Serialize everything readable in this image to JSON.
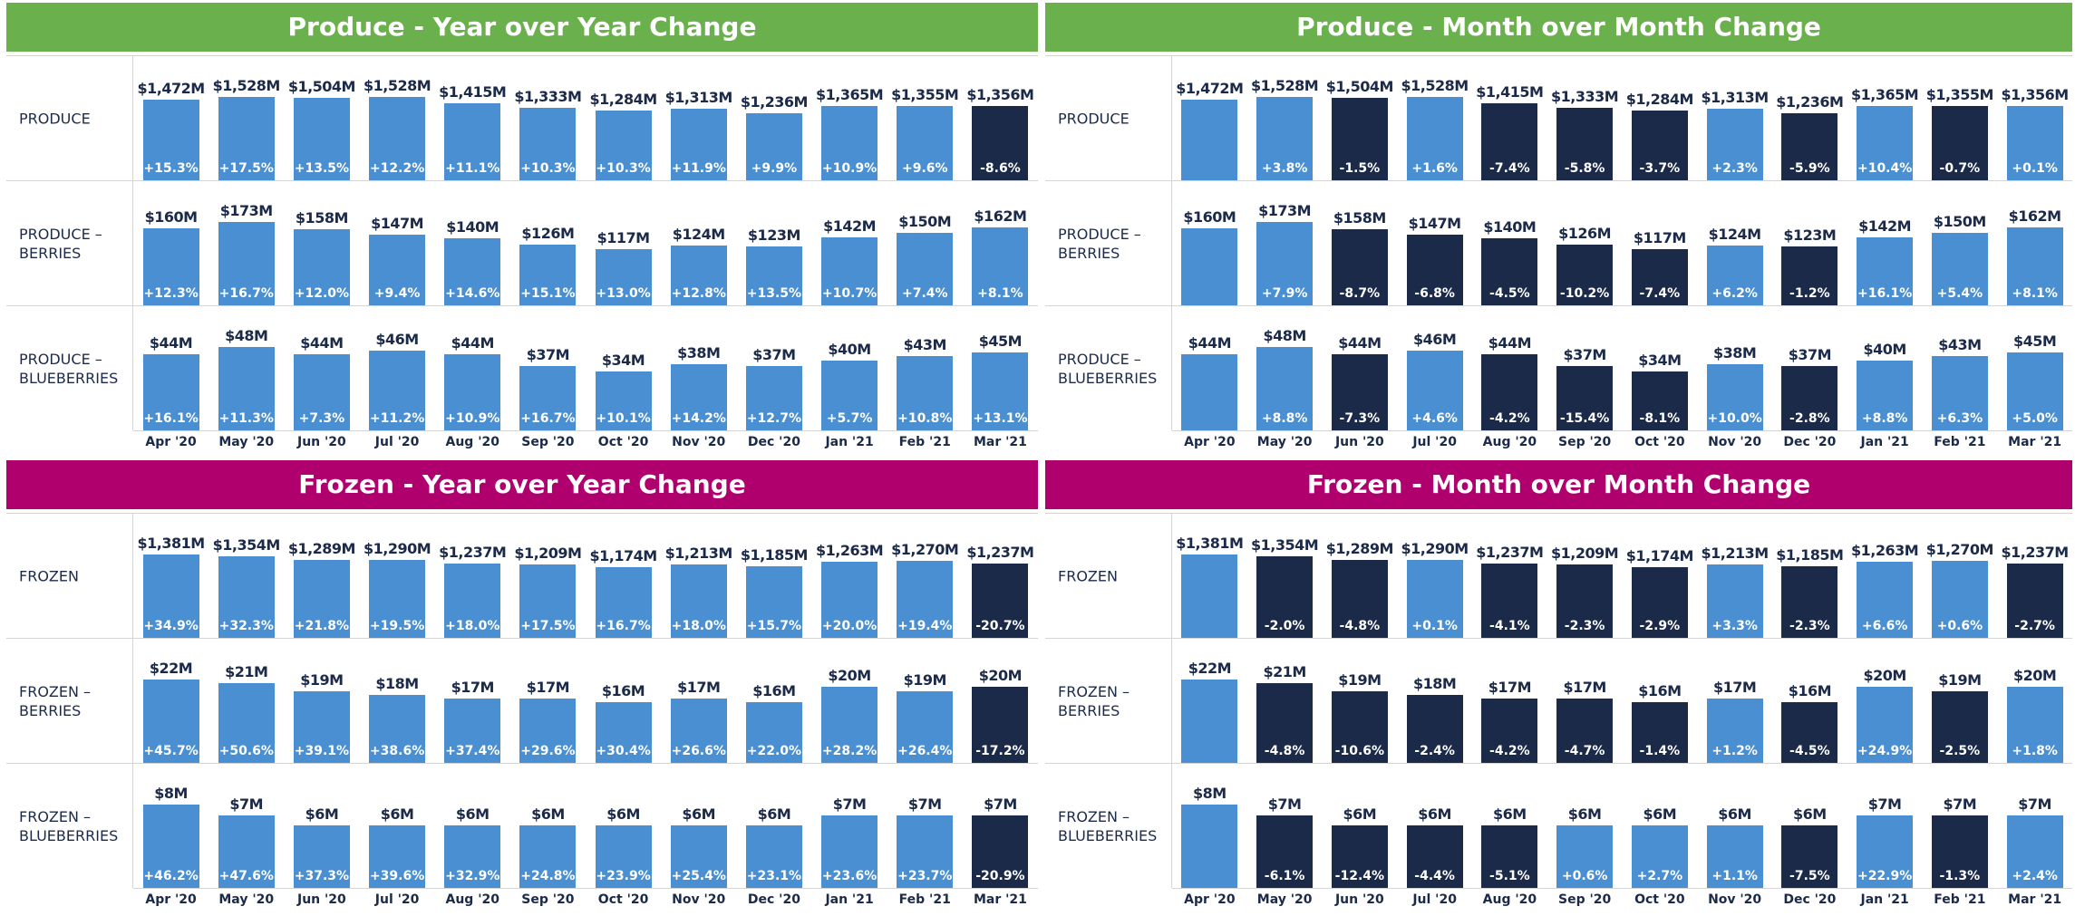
{
  "chart_data": [
    {
      "type": "bar",
      "title": "Produce - Year over Year Change",
      "title_color": "#6ab04c",
      "colors": {
        "positive": "#4a8fd1",
        "negative": "#1c2a4a"
      },
      "categories": [
        "Apr '20",
        "May '20",
        "Jun '20",
        "Jul '20",
        "Aug '20",
        "Sep '20",
        "Oct '20",
        "Nov '20",
        "Dec '20",
        "Jan '21",
        "Feb '21",
        "Mar '21"
      ],
      "rows": [
        {
          "label": "PRODUCE",
          "values": [
            1472,
            1528,
            1504,
            1528,
            1415,
            1333,
            1284,
            1313,
            1236,
            1365,
            1355,
            1356
          ],
          "value_labels": [
            "$1,472M",
            "$1,528M",
            "$1,504M",
            "$1,528M",
            "$1,415M",
            "$1,333M",
            "$1,284M",
            "$1,313M",
            "$1,236M",
            "$1,365M",
            "$1,355M",
            "$1,356M"
          ],
          "changes": [
            15.3,
            17.5,
            13.5,
            12.2,
            11.1,
            10.3,
            10.3,
            11.9,
            9.9,
            10.9,
            9.6,
            -8.6
          ],
          "change_labels": [
            "+15.3%",
            "+17.5%",
            "+13.5%",
            "+12.2%",
            "+11.1%",
            "+10.3%",
            "+10.3%",
            "+11.9%",
            "+9.9%",
            "+10.9%",
            "+9.6%",
            "-8.6%"
          ]
        },
        {
          "label": "PRODUCE – BERRIES",
          "values": [
            160,
            173,
            158,
            147,
            140,
            126,
            117,
            124,
            123,
            142,
            150,
            162
          ],
          "value_labels": [
            "$160M",
            "$173M",
            "$158M",
            "$147M",
            "$140M",
            "$126M",
            "$117M",
            "$124M",
            "$123M",
            "$142M",
            "$150M",
            "$162M"
          ],
          "changes": [
            12.3,
            16.7,
            12.0,
            9.4,
            14.6,
            15.1,
            13.0,
            12.8,
            13.5,
            10.7,
            7.4,
            8.1
          ],
          "change_labels": [
            "+12.3%",
            "+16.7%",
            "+12.0%",
            "+9.4%",
            "+14.6%",
            "+15.1%",
            "+13.0%",
            "+12.8%",
            "+13.5%",
            "+10.7%",
            "+7.4%",
            "+8.1%"
          ]
        },
        {
          "label": "PRODUCE – BLUEBERRIES",
          "values": [
            44,
            48,
            44,
            46,
            44,
            37,
            34,
            38,
            37,
            40,
            43,
            45
          ],
          "value_labels": [
            "$44M",
            "$48M",
            "$44M",
            "$46M",
            "$44M",
            "$37M",
            "$34M",
            "$38M",
            "$37M",
            "$40M",
            "$43M",
            "$45M"
          ],
          "changes": [
            16.1,
            11.3,
            7.3,
            11.2,
            10.9,
            16.7,
            10.1,
            14.2,
            12.7,
            5.7,
            10.8,
            13.1
          ],
          "change_labels": [
            "+16.1%",
            "+11.3%",
            "+7.3%",
            "+11.2%",
            "+10.9%",
            "+16.7%",
            "+10.1%",
            "+14.2%",
            "+12.7%",
            "+5.7%",
            "+10.8%",
            "+13.1%"
          ]
        }
      ]
    },
    {
      "type": "bar",
      "title": "Produce - Month over Month Change",
      "title_color": "#6ab04c",
      "colors": {
        "positive": "#4a8fd1",
        "negative": "#1c2a4a"
      },
      "categories": [
        "Apr '20",
        "May '20",
        "Jun '20",
        "Jul '20",
        "Aug '20",
        "Sep '20",
        "Oct '20",
        "Nov '20",
        "Dec '20",
        "Jan '21",
        "Feb '21",
        "Mar '21"
      ],
      "rows": [
        {
          "label": "PRODUCE",
          "values": [
            1472,
            1528,
            1504,
            1528,
            1415,
            1333,
            1284,
            1313,
            1236,
            1365,
            1355,
            1356
          ],
          "value_labels": [
            "$1,472M",
            "$1,528M",
            "$1,504M",
            "$1,528M",
            "$1,415M",
            "$1,333M",
            "$1,284M",
            "$1,313M",
            "$1,236M",
            "$1,365M",
            "$1,355M",
            "$1,356M"
          ],
          "changes": [
            null,
            3.8,
            -1.5,
            1.6,
            -7.4,
            -5.8,
            -3.7,
            2.3,
            -5.9,
            10.4,
            -0.7,
            0.1
          ],
          "change_labels": [
            null,
            "+3.8%",
            "-1.5%",
            "+1.6%",
            "-7.4%",
            "-5.8%",
            "-3.7%",
            "+2.3%",
            "-5.9%",
            "+10.4%",
            "-0.7%",
            "+0.1%"
          ]
        },
        {
          "label": "PRODUCE – BERRIES",
          "values": [
            160,
            173,
            158,
            147,
            140,
            126,
            117,
            124,
            123,
            142,
            150,
            162
          ],
          "value_labels": [
            "$160M",
            "$173M",
            "$158M",
            "$147M",
            "$140M",
            "$126M",
            "$117M",
            "$124M",
            "$123M",
            "$142M",
            "$150M",
            "$162M"
          ],
          "changes": [
            null,
            7.9,
            -8.7,
            -6.8,
            -4.5,
            -10.2,
            -7.4,
            6.2,
            -1.2,
            16.1,
            5.4,
            8.1
          ],
          "change_labels": [
            null,
            "+7.9%",
            "-8.7%",
            "-6.8%",
            "-4.5%",
            "-10.2%",
            "-7.4%",
            "+6.2%",
            "-1.2%",
            "+16.1%",
            "+5.4%",
            "+8.1%"
          ]
        },
        {
          "label": "PRODUCE – BLUEBERRIES",
          "values": [
            44,
            48,
            44,
            46,
            44,
            37,
            34,
            38,
            37,
            40,
            43,
            45
          ],
          "value_labels": [
            "$44M",
            "$48M",
            "$44M",
            "$46M",
            "$44M",
            "$37M",
            "$34M",
            "$38M",
            "$37M",
            "$40M",
            "$43M",
            "$45M"
          ],
          "changes": [
            null,
            8.8,
            -7.3,
            4.6,
            -4.2,
            -15.4,
            -8.1,
            10.0,
            -2.8,
            8.8,
            6.3,
            5.0
          ],
          "change_labels": [
            null,
            "+8.8%",
            "-7.3%",
            "+4.6%",
            "-4.2%",
            "-15.4%",
            "-8.1%",
            "+10.0%",
            "-2.8%",
            "+8.8%",
            "+6.3%",
            "+5.0%"
          ]
        }
      ]
    },
    {
      "type": "bar",
      "title": "Frozen - Year over Year Change",
      "title_color": "#b0006e",
      "colors": {
        "positive": "#4a8fd1",
        "negative": "#1c2a4a"
      },
      "categories": [
        "Apr '20",
        "May '20",
        "Jun '20",
        "Jul '20",
        "Aug '20",
        "Sep '20",
        "Oct '20",
        "Nov '20",
        "Dec '20",
        "Jan '21",
        "Feb '21",
        "Mar '21"
      ],
      "rows": [
        {
          "label": "FROZEN",
          "values": [
            1381,
            1354,
            1289,
            1290,
            1237,
            1209,
            1174,
            1213,
            1185,
            1263,
            1270,
            1237
          ],
          "value_labels": [
            "$1,381M",
            "$1,354M",
            "$1,289M",
            "$1,290M",
            "$1,237M",
            "$1,209M",
            "$1,174M",
            "$1,213M",
            "$1,185M",
            "$1,263M",
            "$1,270M",
            "$1,237M"
          ],
          "changes": [
            34.9,
            32.3,
            21.8,
            19.5,
            18.0,
            17.5,
            16.7,
            18.0,
            15.7,
            20.0,
            19.4,
            -20.7
          ],
          "change_labels": [
            "+34.9%",
            "+32.3%",
            "+21.8%",
            "+19.5%",
            "+18.0%",
            "+17.5%",
            "+16.7%",
            "+18.0%",
            "+15.7%",
            "+20.0%",
            "+19.4%",
            "-20.7%"
          ]
        },
        {
          "label": "FROZEN – BERRIES",
          "values": [
            22,
            21,
            19,
            18,
            17,
            17,
            16,
            17,
            16,
            20,
            19,
            20
          ],
          "value_labels": [
            "$22M",
            "$21M",
            "$19M",
            "$18M",
            "$17M",
            "$17M",
            "$16M",
            "$17M",
            "$16M",
            "$20M",
            "$19M",
            "$20M"
          ],
          "changes": [
            45.7,
            50.6,
            39.1,
            38.6,
            37.4,
            29.6,
            30.4,
            26.6,
            22.0,
            28.2,
            26.4,
            -17.2
          ],
          "change_labels": [
            "+45.7%",
            "+50.6%",
            "+39.1%",
            "+38.6%",
            "+37.4%",
            "+29.6%",
            "+30.4%",
            "+26.6%",
            "+22.0%",
            "+28.2%",
            "+26.4%",
            "-17.2%"
          ]
        },
        {
          "label": "FROZEN – BLUEBERRIES",
          "values": [
            8,
            7,
            6,
            6,
            6,
            6,
            6,
            6,
            6,
            7,
            7,
            7
          ],
          "value_labels": [
            "$8M",
            "$7M",
            "$6M",
            "$6M",
            "$6M",
            "$6M",
            "$6M",
            "$6M",
            "$6M",
            "$7M",
            "$7M",
            "$7M"
          ],
          "changes": [
            46.2,
            47.6,
            37.3,
            39.6,
            32.9,
            24.8,
            23.9,
            25.4,
            23.1,
            23.6,
            23.7,
            -20.9
          ],
          "change_labels": [
            "+46.2%",
            "+47.6%",
            "+37.3%",
            "+39.6%",
            "+32.9%",
            "+24.8%",
            "+23.9%",
            "+25.4%",
            "+23.1%",
            "+23.6%",
            "+23.7%",
            "-20.9%"
          ]
        }
      ]
    },
    {
      "type": "bar",
      "title": "Frozen - Month over Month Change",
      "title_color": "#b0006e",
      "colors": {
        "positive": "#4a8fd1",
        "negative": "#1c2a4a"
      },
      "categories": [
        "Apr '20",
        "May '20",
        "Jun '20",
        "Jul '20",
        "Aug '20",
        "Sep '20",
        "Oct '20",
        "Nov '20",
        "Dec '20",
        "Jan '21",
        "Feb '21",
        "Mar '21"
      ],
      "rows": [
        {
          "label": "FROZEN",
          "values": [
            1381,
            1354,
            1289,
            1290,
            1237,
            1209,
            1174,
            1213,
            1185,
            1263,
            1270,
            1237
          ],
          "value_labels": [
            "$1,381M",
            "$1,354M",
            "$1,289M",
            "$1,290M",
            "$1,237M",
            "$1,209M",
            "$1,174M",
            "$1,213M",
            "$1,185M",
            "$1,263M",
            "$1,270M",
            "$1,237M"
          ],
          "changes": [
            null,
            -2.0,
            -4.8,
            0.1,
            -4.1,
            -2.3,
            -2.9,
            3.3,
            -2.3,
            6.6,
            0.6,
            -2.7
          ],
          "change_labels": [
            null,
            "-2.0%",
            "-4.8%",
            "+0.1%",
            "-4.1%",
            "-2.3%",
            "-2.9%",
            "+3.3%",
            "-2.3%",
            "+6.6%",
            "+0.6%",
            "-2.7%"
          ]
        },
        {
          "label": "FROZEN – BERRIES",
          "values": [
            22,
            21,
            19,
            18,
            17,
            17,
            16,
            17,
            16,
            20,
            19,
            20
          ],
          "value_labels": [
            "$22M",
            "$21M",
            "$19M",
            "$18M",
            "$17M",
            "$17M",
            "$16M",
            "$17M",
            "$16M",
            "$20M",
            "$19M",
            "$20M"
          ],
          "changes": [
            null,
            -4.8,
            -10.6,
            -2.4,
            -4.2,
            -4.7,
            -1.4,
            1.2,
            -4.5,
            24.9,
            -2.5,
            1.8
          ],
          "change_labels": [
            null,
            "-4.8%",
            "-10.6%",
            "-2.4%",
            "-4.2%",
            "-4.7%",
            "-1.4%",
            "+1.2%",
            "-4.5%",
            "+24.9%",
            "-2.5%",
            "+1.8%"
          ]
        },
        {
          "label": "FROZEN – BLUEBERRIES",
          "values": [
            8,
            7,
            6,
            6,
            6,
            6,
            6,
            6,
            6,
            7,
            7,
            7
          ],
          "value_labels": [
            "$8M",
            "$7M",
            "$6M",
            "$6M",
            "$6M",
            "$6M",
            "$6M",
            "$6M",
            "$6M",
            "$7M",
            "$7M",
            "$7M"
          ],
          "changes": [
            null,
            -6.1,
            -12.4,
            -4.4,
            -5.1,
            0.6,
            2.7,
            1.1,
            -7.5,
            22.9,
            -1.3,
            2.4
          ],
          "change_labels": [
            null,
            "-6.1%",
            "-12.4%",
            "-4.4%",
            "-5.1%",
            "+0.6%",
            "+2.7%",
            "+1.1%",
            "-7.5%",
            "+22.9%",
            "-1.3%",
            "+2.4%"
          ]
        }
      ]
    }
  ]
}
